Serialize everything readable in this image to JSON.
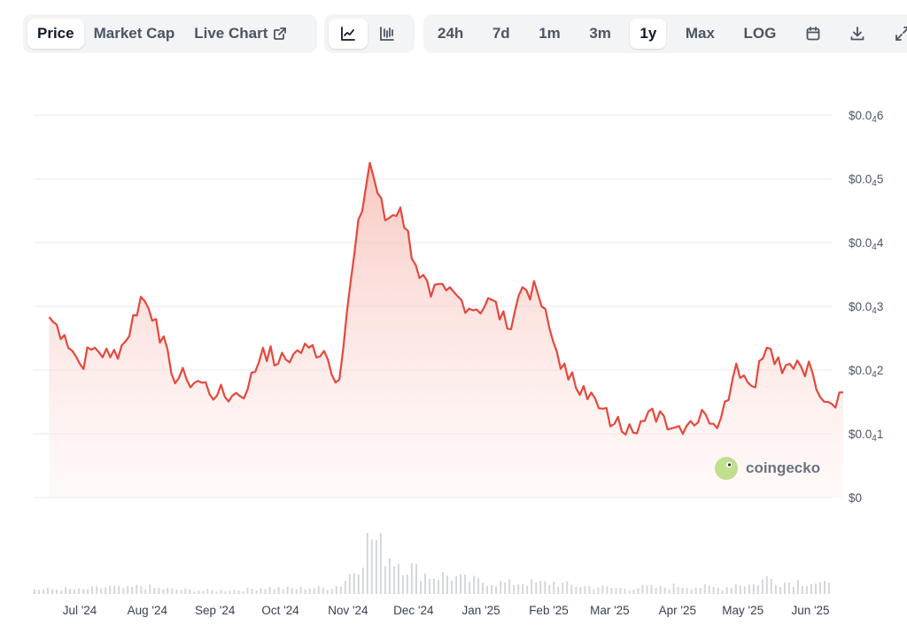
{
  "tabs": {
    "price": "Price",
    "market_cap": "Market Cap",
    "live_chart": "Live Chart"
  },
  "chart_type_buttons": [
    {
      "icon": "line-chart-icon",
      "active": true
    },
    {
      "icon": "candlestick-chart-icon",
      "active": false
    }
  ],
  "ranges": [
    "24h",
    "7d",
    "1m",
    "3m",
    "1y",
    "Max"
  ],
  "active_range": "1y",
  "log_label": "LOG",
  "tool_icons": [
    "calendar-icon",
    "download-icon",
    "expand-icon"
  ],
  "watermark": "coingecko",
  "colors": {
    "line": "#e5483d",
    "fill_top": "#f6b5ad",
    "grid": "#e8eaed",
    "volume": "#d3d7dc",
    "accent_logo": "#8dc63f"
  },
  "chart_data": {
    "type": "area",
    "title": "",
    "xlabel": "",
    "ylabel": "",
    "y_unit_note": "prices shown in subscript-zero notation: $0.0₄N = 0.0000N",
    "ylim": [
      0,
      6e-05
    ],
    "y_ticks": [
      {
        "value": 0,
        "main": "$0",
        "sub": "",
        "tail": ""
      },
      {
        "value": 1e-05,
        "main": "$0.0",
        "sub": "4",
        "tail": "1"
      },
      {
        "value": 2e-05,
        "main": "$0.0",
        "sub": "4",
        "tail": "2"
      },
      {
        "value": 3e-05,
        "main": "$0.0",
        "sub": "4",
        "tail": "3"
      },
      {
        "value": 4e-05,
        "main": "$0.0",
        "sub": "4",
        "tail": "4"
      },
      {
        "value": 5e-05,
        "main": "$0.0",
        "sub": "4",
        "tail": "5"
      },
      {
        "value": 6e-05,
        "main": "$0.0",
        "sub": "4",
        "tail": "6"
      }
    ],
    "x_ticks": [
      "Jul '24",
      "Aug '24",
      "Sep '24",
      "Oct '24",
      "Nov '24",
      "Dec '24",
      "Jan '25",
      "Feb '25",
      "Mar '25",
      "Apr '25",
      "May '25",
      "Jun '25"
    ],
    "x": [
      "2024-06-17",
      "2024-06-24",
      "2024-07-01",
      "2024-07-08",
      "2024-07-15",
      "2024-07-22",
      "2024-07-29",
      "2024-08-05",
      "2024-08-12",
      "2024-08-19",
      "2024-08-26",
      "2024-09-02",
      "2024-09-09",
      "2024-09-16",
      "2024-09-23",
      "2024-09-30",
      "2024-10-07",
      "2024-10-14",
      "2024-10-21",
      "2024-10-28",
      "2024-11-04",
      "2024-11-11",
      "2024-11-18",
      "2024-11-25",
      "2024-12-02",
      "2024-12-09",
      "2024-12-16",
      "2024-12-23",
      "2024-12-30",
      "2025-01-06",
      "2025-01-13",
      "2025-01-20",
      "2025-01-27",
      "2025-02-03",
      "2025-02-10",
      "2025-02-17",
      "2025-02-24",
      "2025-03-03",
      "2025-03-10",
      "2025-03-17",
      "2025-03-24",
      "2025-03-31",
      "2025-04-07",
      "2025-04-14",
      "2025-04-21",
      "2025-04-28",
      "2025-05-05",
      "2025-05-12",
      "2025-05-19",
      "2025-05-26",
      "2025-06-02",
      "2025-06-09",
      "2025-06-16"
    ],
    "series": [
      {
        "values": [
          2.83e-05,
          2.55e-05,
          2.1e-05,
          2.35e-05,
          2.2e-05,
          2.45e-05,
          3.15e-05,
          2.8e-05,
          1.95e-05,
          1.85e-05,
          1.8e-05,
          1.6e-05,
          1.6e-05,
          1.7e-05,
          2.35e-05,
          2.1e-05,
          2.25e-05,
          2.35e-05,
          2.3e-05,
          1.85e-05,
          3.85e-05,
          5.25e-05,
          4.35e-05,
          4.55e-05,
          3.65e-05,
          3.15e-05,
          3.25e-05,
          3.1e-05,
          2.95e-05,
          3.1e-05,
          2.65e-05,
          3.3e-05,
          3.2e-05,
          2.45e-05,
          1.85e-05,
          1.75e-05,
          1.4e-05,
          1.15e-05,
          1.15e-05,
          1.2e-05,
          1.35e-05,
          1.1e-05,
          1.2e-05,
          1.3e-05,
          1.25e-05,
          2.1e-05,
          1.75e-05,
          2.35e-05,
          1.95e-05,
          2.15e-05,
          1.95e-05,
          1.5e-05,
          1.65e-05
        ]
      }
    ],
    "volume_relative": [
      0.08,
      0.09,
      0.07,
      0.1,
      0.12,
      0.09,
      0.14,
      0.1,
      0.08,
      0.07,
      0.06,
      0.06,
      0.07,
      0.08,
      0.12,
      0.1,
      0.09,
      0.11,
      0.1,
      0.15,
      0.45,
      1.0,
      0.7,
      0.55,
      0.4,
      0.3,
      0.32,
      0.25,
      0.22,
      0.2,
      0.18,
      0.2,
      0.18,
      0.2,
      0.15,
      0.13,
      0.12,
      0.1,
      0.1,
      0.12,
      0.11,
      0.14,
      0.13,
      0.12,
      0.1,
      0.18,
      0.15,
      0.28,
      0.2,
      0.22,
      0.2,
      0.15,
      0.14
    ]
  }
}
